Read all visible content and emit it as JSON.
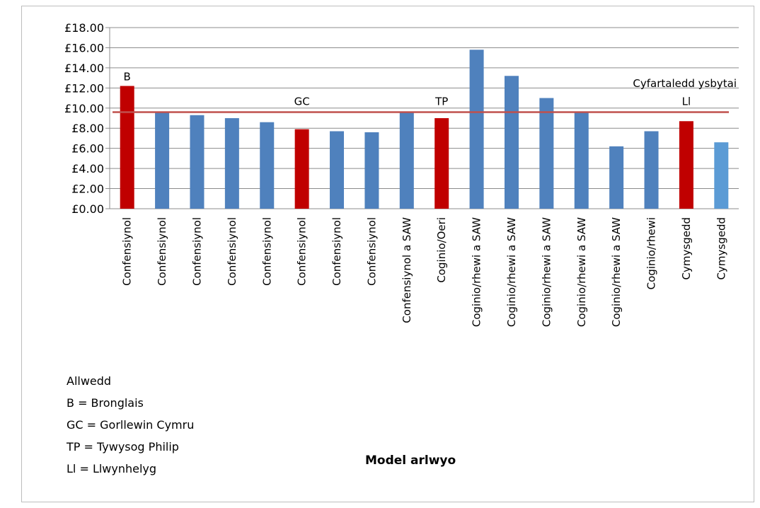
{
  "chart_data": {
    "type": "bar",
    "title": "",
    "xlabel": "Model arlwyo",
    "ylabel": "",
    "ylim": [
      0,
      18
    ],
    "yticks": [
      "£0.00",
      "£2.00",
      "£4.00",
      "£6.00",
      "£8.00",
      "£10.00",
      "£12.00",
      "£14.00",
      "£16.00",
      "£18.00"
    ],
    "grid": true,
    "categories": [
      "Confensiynol",
      "Confensiynol",
      "Confensiynol",
      "Confensiynol",
      "Confensiynol",
      "Confensiynol",
      "Confensiynol",
      "Confensiynol",
      "Confensiynol a SAW",
      "Coginio/Oeri",
      "Coginio/rhewi a SAW",
      "Coginio/rhewi a SAW",
      "Coginio/rhewi a SAW",
      "Coginio/rhewi a SAW",
      "Coginio/rhewi a SAW",
      "Coginio/rhewi",
      "Cymysgedd",
      "Cymysgedd"
    ],
    "values": [
      12.2,
      9.6,
      9.3,
      9.0,
      8.6,
      7.9,
      7.7,
      7.6,
      9.6,
      9.0,
      15.8,
      13.2,
      11.0,
      9.6,
      6.2,
      7.7,
      8.7,
      6.6
    ],
    "bar_colors": [
      "#c00000",
      "#4f81bd",
      "#4f81bd",
      "#4f81bd",
      "#4f81bd",
      "#c00000",
      "#4f81bd",
      "#4f81bd",
      "#4f81bd",
      "#c00000",
      "#4f81bd",
      "#4f81bd",
      "#4f81bd",
      "#4f81bd",
      "#4f81bd",
      "#4f81bd",
      "#c00000",
      "#5b9bd5"
    ],
    "average_line": {
      "value": 9.6,
      "label": "Cyfartaledd ysbytai",
      "color": "#c0504d"
    },
    "bar_annotations": [
      {
        "index": 0,
        "text": "B"
      },
      {
        "index": 5,
        "text": "GC"
      },
      {
        "index": 9,
        "text": "TP"
      },
      {
        "index": 16,
        "text": "Ll"
      }
    ]
  },
  "legend": {
    "title": "Allwedd",
    "items": [
      "B = Bronglais",
      "GC = Gorllewin Cymru",
      "TP = Tywysog Philip",
      "Ll = Llwynhelyg"
    ]
  }
}
